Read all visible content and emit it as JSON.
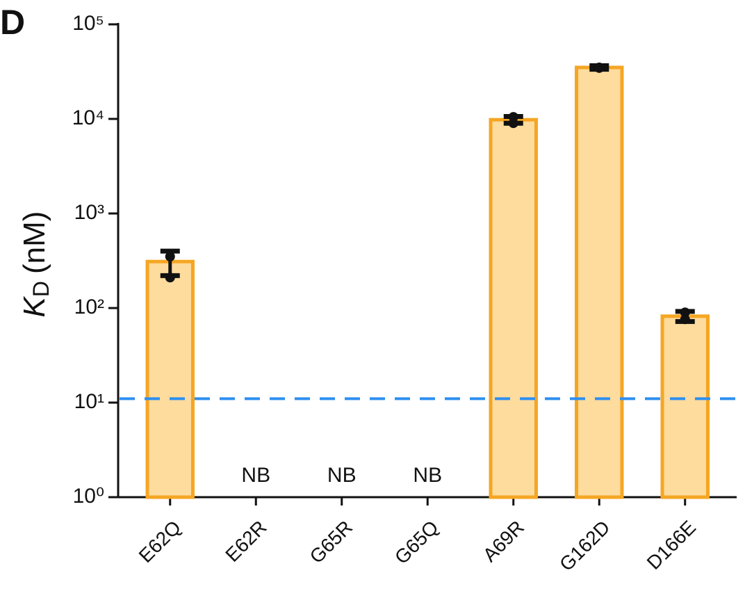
{
  "chart_data": {
    "type": "bar",
    "panel_label": "D",
    "ylabel": {
      "symbol": "K",
      "subscript": "D",
      "unit": "(nM)"
    },
    "categories": [
      "E62Q",
      "E62R",
      "G65R",
      "G65Q",
      "A69R",
      "G162D",
      "D166E"
    ],
    "values": [
      310,
      null,
      null,
      null,
      9800,
      35000,
      82
    ],
    "value_labels": [
      null,
      "NB",
      "NB",
      "NB",
      null,
      null,
      null
    ],
    "errors": [
      90,
      null,
      null,
      null,
      800,
      1500,
      10
    ],
    "replicates": [
      [
        350,
        210
      ],
      null,
      null,
      null,
      [
        10500,
        9000
      ],
      [
        34500,
        35000
      ],
      [
        90,
        76
      ]
    ],
    "color": "#fddc9e",
    "edge_color": "#f5a623",
    "error_color": "#111111",
    "log_scale": true,
    "ylim": [
      1,
      100000
    ],
    "yticks": [
      {
        "value": 1,
        "label": "10⁰"
      },
      {
        "value": 10,
        "label": "10¹"
      },
      {
        "value": 100,
        "label": "10²"
      },
      {
        "value": 1000,
        "label": "10³"
      },
      {
        "value": 10000,
        "label": "10⁴"
      },
      {
        "value": 100000,
        "label": "10⁵"
      }
    ],
    "reference_line": {
      "value": 11,
      "color": "#2e8ff0"
    }
  }
}
